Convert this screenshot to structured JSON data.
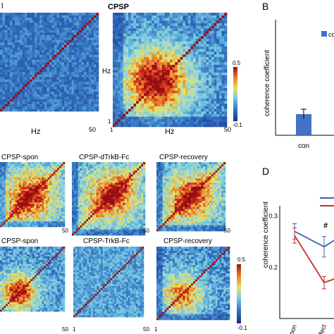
{
  "panel_labels": {
    "B": "B",
    "D": "D"
  },
  "top_left": {
    "title": "l",
    "xlabel": "Hz",
    "xtick_max": "50"
  },
  "cpsp": {
    "title": "CPSP",
    "ylabel": "Hz",
    "xlabel": "Hz",
    "xtick_min": "1",
    "xtick_max": "50",
    "ytick_min": "1"
  },
  "colorbar": {
    "max": "0.5",
    "min": "-0.1"
  },
  "row2": {
    "titles": [
      "CPSP-spon",
      "CPSP-dTrkB-Fc",
      "CPSP-recovery"
    ],
    "tick": "50"
  },
  "row3": {
    "titles": [
      "CPSP-spon",
      "CPSP-TrkB-Fc",
      "CPSP-recovery"
    ],
    "tick_min": "1",
    "tick_max": "50"
  },
  "colors": {
    "blue": "#3b63b4",
    "red": "#c0302c",
    "bar": "#4472c4"
  },
  "chart_data": [
    {
      "type": "heatmap",
      "panel": "A-con",
      "title": "l",
      "xlabel": "Hz",
      "pattern": "uniform low coherence, diagonal 0.5",
      "range": [
        -0.1,
        0.5
      ]
    },
    {
      "type": "heatmap",
      "panel": "A-CPSP",
      "title": "CPSP",
      "xlabel": "Hz",
      "ylabel": "Hz",
      "pattern": "high coherence block centered around 20 Hz, low below 5 Hz",
      "range": [
        -0.1,
        0.5
      ]
    },
    {
      "type": "bar",
      "panel": "B",
      "categories": [
        "con"
      ],
      "values": [
        0.055
      ],
      "errors": [
        0.013
      ],
      "legend": [
        "co"
      ],
      "ylabel": "coherence coefficient"
    },
    {
      "type": "line",
      "panel": "D",
      "x": [
        "spon",
        "effect",
        ""
      ],
      "ylabel": "coherence coefficient",
      "yticks": [
        0.2,
        0.3
      ],
      "ylim": [
        0.1,
        0.32
      ],
      "annotation": "#",
      "series": [
        {
          "color": "blue",
          "values": [
            0.27,
            0.24,
            0.275
          ],
          "errors": [
            0.015,
            0.02,
            0.015
          ]
        },
        {
          "color": "red",
          "values": [
            0.262,
            0.17,
            0.19
          ],
          "errors": [
            0.015,
            0.012,
            0.012
          ]
        }
      ]
    }
  ]
}
